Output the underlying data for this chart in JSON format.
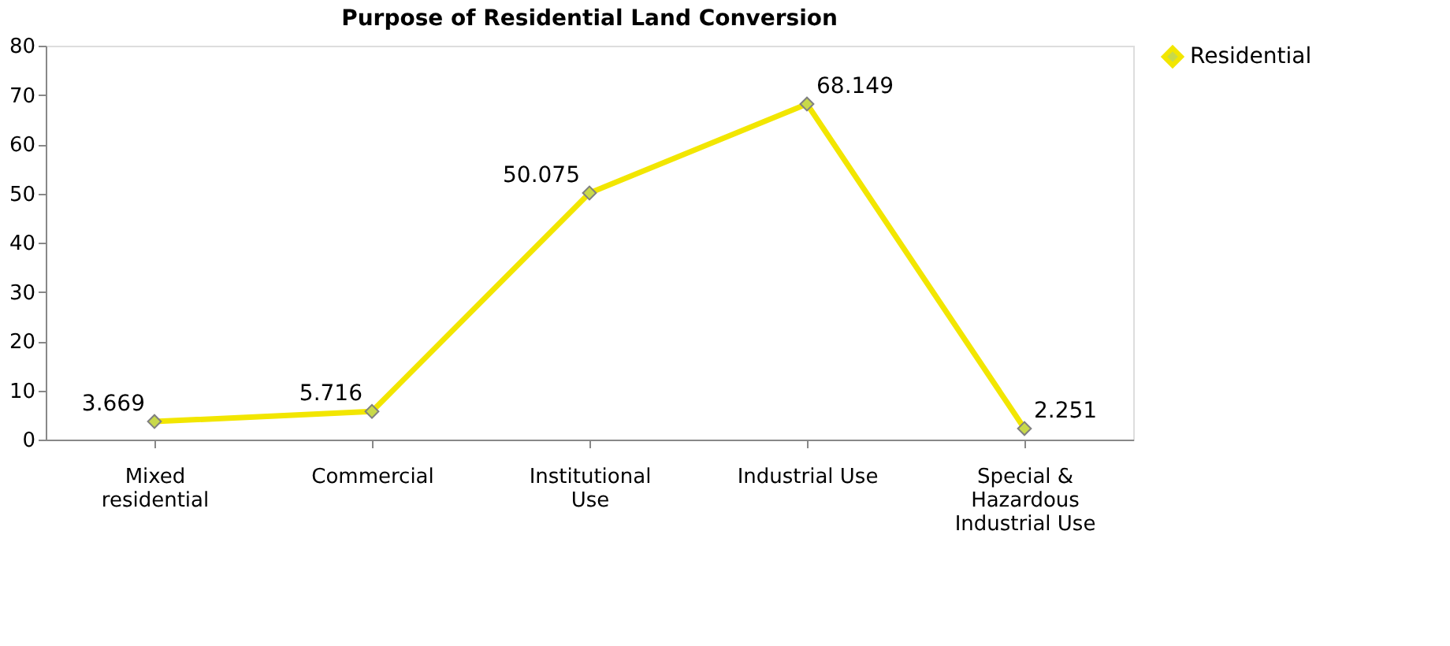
{
  "chart_data": {
    "type": "line",
    "title": "Purpose of Residential Land Conversion",
    "categories": [
      "Mixed residential",
      "Commercial",
      "Institutional Use",
      "Industrial Use",
      "Special & Hazardous Industrial Use"
    ],
    "series": [
      {
        "name": "Residential",
        "color": "#f2e600",
        "values": [
          3.669,
          5.716,
          50.075,
          68.149,
          2.251
        ]
      }
    ],
    "ylim": [
      0,
      80
    ],
    "yticks": [
      0,
      10,
      20,
      30,
      40,
      50,
      60,
      70,
      80
    ],
    "grid": false,
    "legend": "right",
    "marker": "diamond",
    "line_style": "solid",
    "data_labels": true
  }
}
